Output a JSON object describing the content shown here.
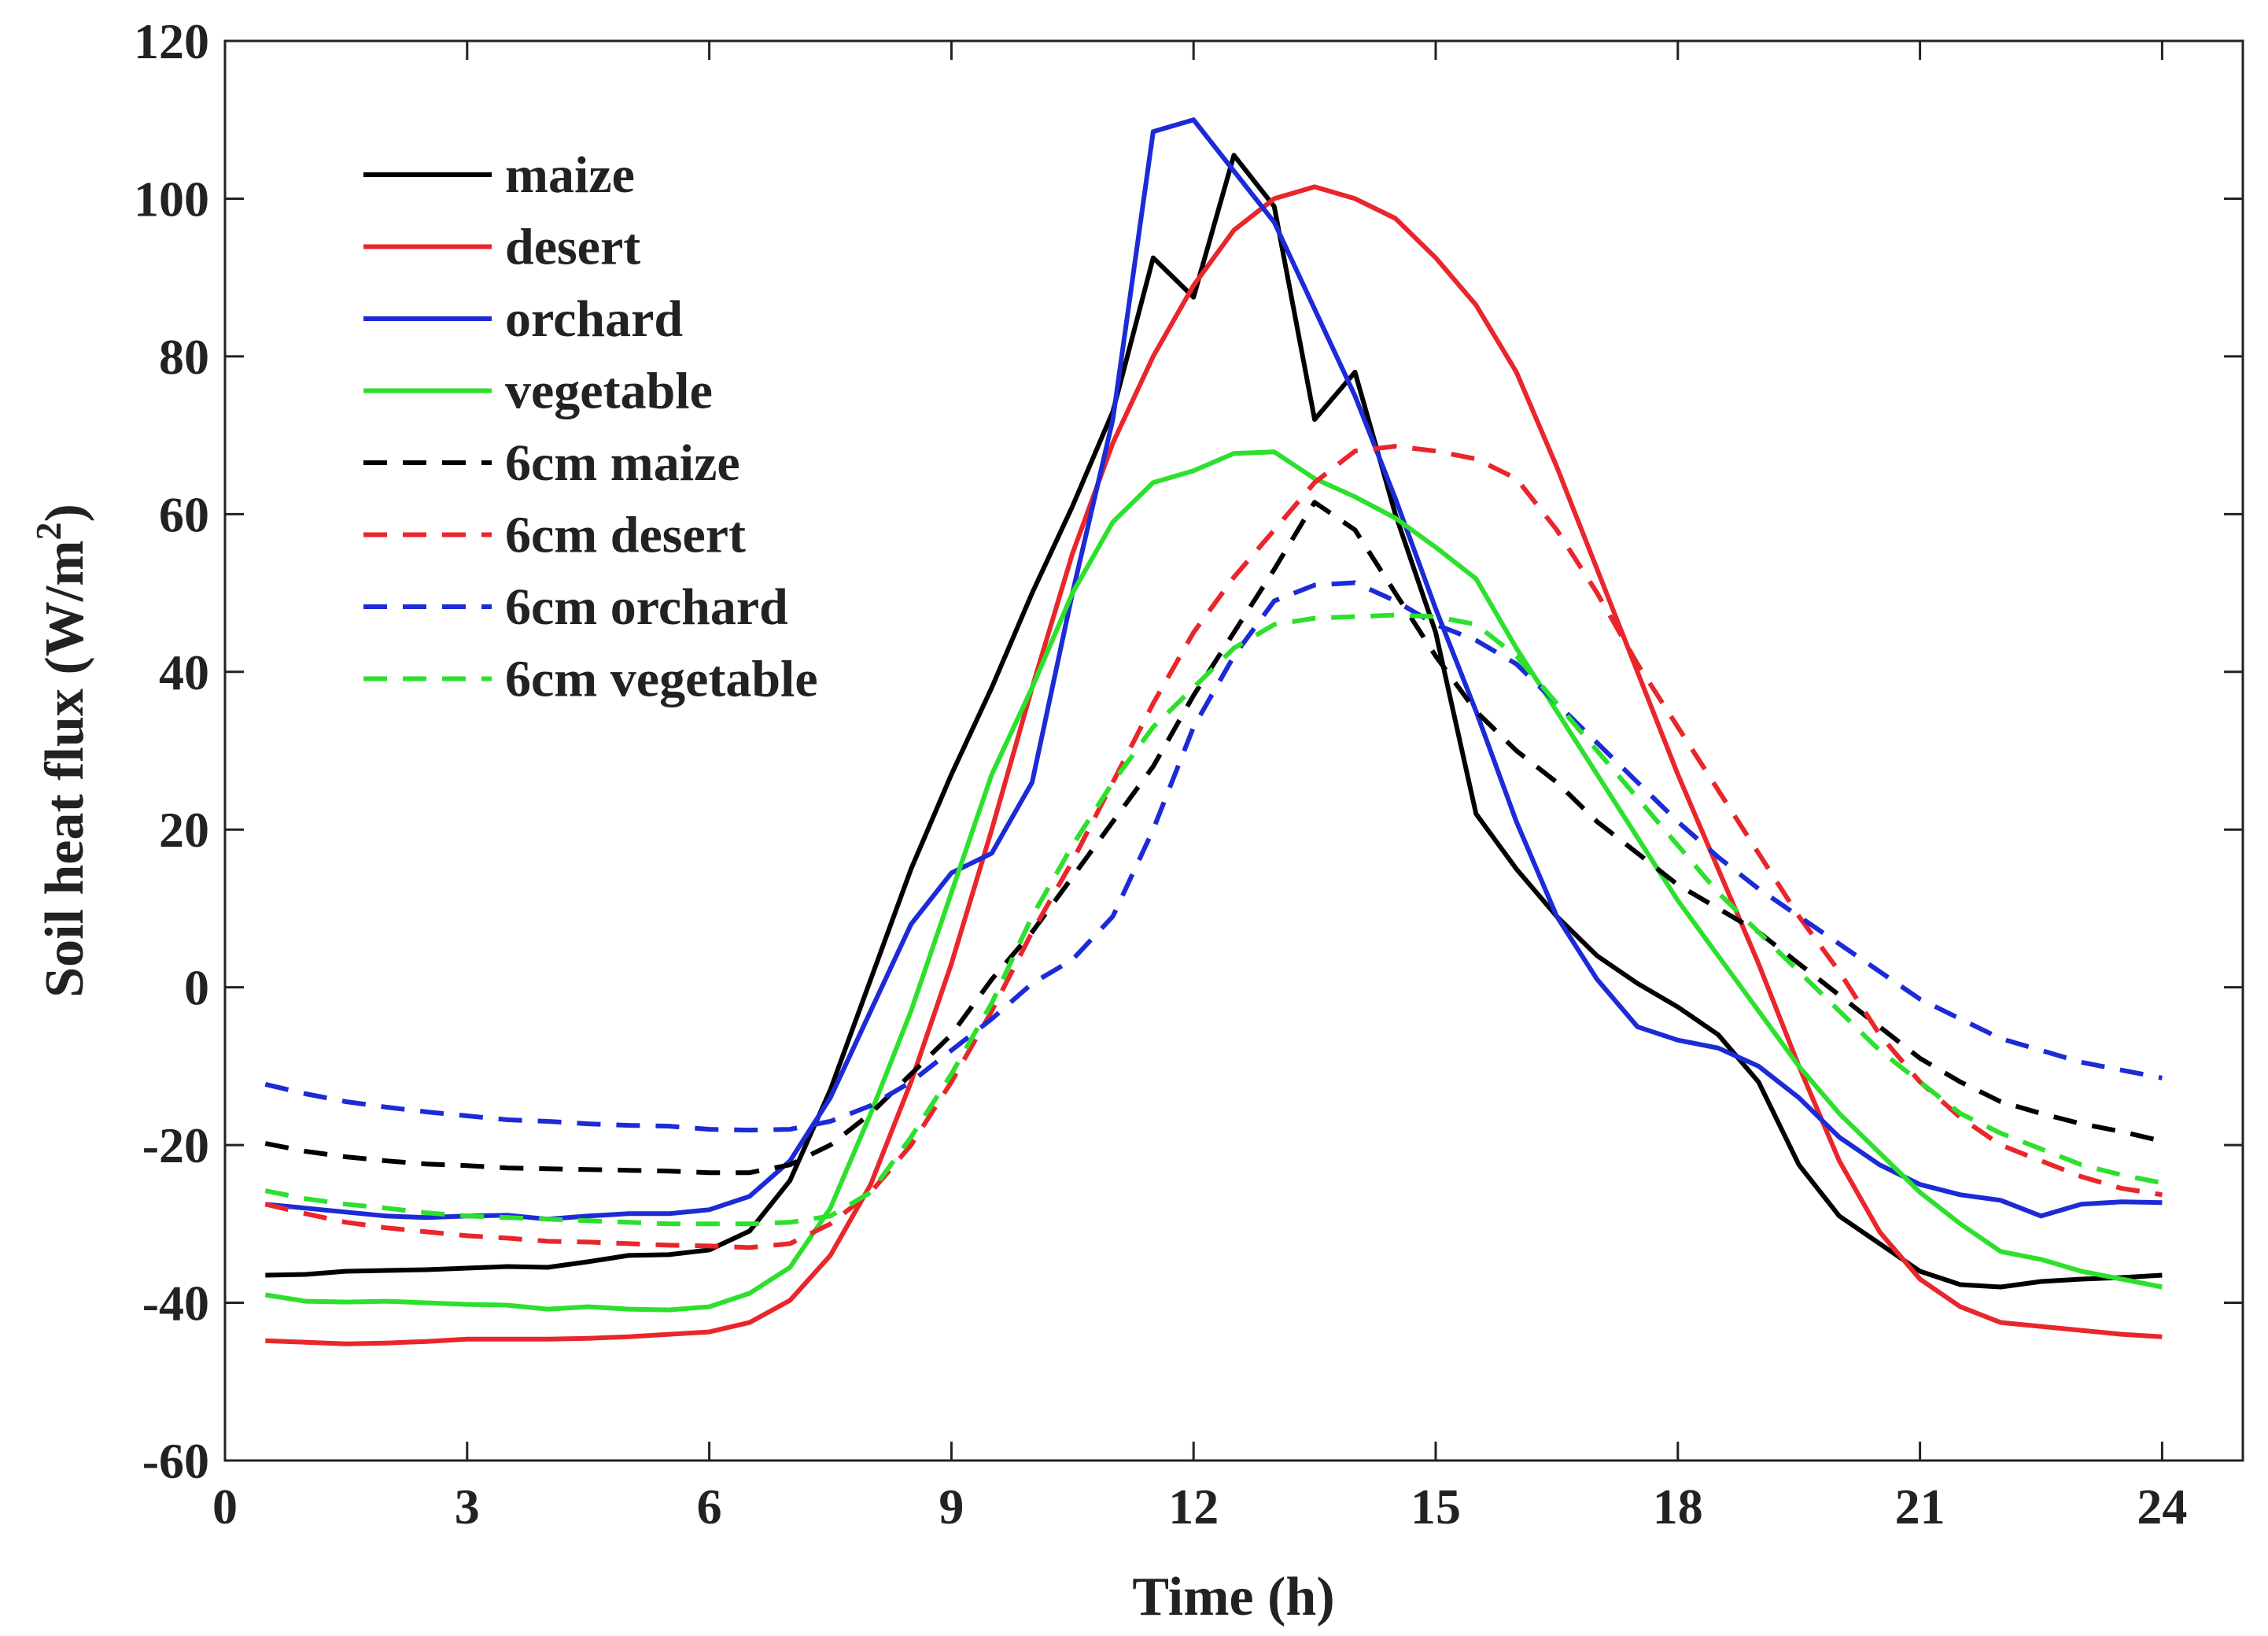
{
  "chart_data": {
    "type": "line",
    "title": "",
    "xlabel": "Time (h)",
    "ylabel": "Soil heat flux (W/m",
    "ylabel_superscript": "2",
    "ylabel_close": ")",
    "xlim": [
      0,
      25
    ],
    "ylim": [
      -60,
      120
    ],
    "xticks": [
      0,
      3,
      6,
      9,
      12,
      15,
      18,
      21,
      24
    ],
    "yticks": [
      -60,
      -40,
      -20,
      0,
      20,
      40,
      60,
      80,
      100,
      120
    ],
    "legend_position": "top-left",
    "grid": false,
    "x": [
      0.5,
      1,
      1.5,
      2,
      2.5,
      3,
      3.5,
      4,
      4.5,
      5,
      5.5,
      6,
      6.5,
      7,
      7.5,
      8,
      8.5,
      9,
      9.5,
      10,
      10.5,
      11,
      11.5,
      12,
      12.5,
      13,
      13.5,
      14,
      14.5,
      15,
      15.5,
      16,
      16.5,
      17,
      17.5,
      18,
      18.5,
      19,
      19.5,
      20,
      20.5,
      21,
      21.5,
      22,
      22.5,
      23,
      23.5,
      24
    ],
    "series": [
      {
        "name": "maize",
        "color": "#000000",
        "dash": "solid",
        "values": [
          -36.5,
          -36.4,
          -36,
          -35.9,
          -35.8,
          -35.6,
          -35.4,
          -35.5,
          -34.8,
          -34,
          -33.9,
          -33.3,
          -30.9,
          -24.5,
          -13,
          1,
          15,
          27,
          38,
          50,
          61,
          73,
          92.5,
          87.5,
          105.5,
          99,
          72,
          78,
          60,
          45,
          22,
          15,
          9,
          4,
          0.5,
          -2.5,
          -6,
          -12,
          -22.5,
          -29,
          -32.5,
          -36,
          -37.7,
          -38,
          -37.3,
          -37,
          -36.8,
          -36.5
        ]
      },
      {
        "name": "desert",
        "color": "#e8262b",
        "dash": "solid",
        "values": [
          -44.8,
          -45,
          -45.2,
          -45.1,
          -44.9,
          -44.6,
          -44.6,
          -44.6,
          -44.5,
          -44.3,
          -44,
          -43.7,
          -42.5,
          -39.7,
          -34,
          -25,
          -12,
          3,
          20,
          38,
          55,
          69,
          80,
          89,
          96,
          100,
          101.5,
          100,
          97.5,
          92.5,
          86.5,
          78,
          66,
          53,
          40,
          27,
          15,
          3,
          -10,
          -22,
          -31,
          -37,
          -40.5,
          -42.5,
          -43,
          -43.5,
          -44,
          -44.3
        ]
      },
      {
        "name": "orchard",
        "color": "#1c2bd6",
        "dash": "solid",
        "values": [
          -27.5,
          -28,
          -28.5,
          -29,
          -29.2,
          -29,
          -28.9,
          -29.4,
          -29,
          -28.7,
          -28.7,
          -28.2,
          -26.5,
          -22,
          -14,
          -3,
          8,
          14.5,
          17,
          26,
          50,
          72,
          108.5,
          110,
          103.5,
          97,
          86,
          75,
          62,
          48,
          35,
          21,
          9,
          1,
          -5,
          -6.7,
          -7.7,
          -10,
          -14,
          -19,
          -22.5,
          -25,
          -26.3,
          -27,
          -29,
          -27.5,
          -27.2,
          -27.3
        ]
      },
      {
        "name": "vegetable",
        "color": "#2de02d",
        "dash": "solid",
        "values": [
          -39,
          -39.8,
          -39.9,
          -39.8,
          -40,
          -40.2,
          -40.3,
          -40.8,
          -40.5,
          -40.8,
          -40.9,
          -40.5,
          -38.8,
          -35.5,
          -28,
          -16,
          -3,
          12,
          27,
          38,
          50,
          59,
          64,
          65.5,
          67.7,
          67.9,
          64.5,
          62.2,
          59.5,
          55.8,
          51.8,
          43,
          35,
          27,
          19,
          11,
          4,
          -3,
          -10,
          -16,
          -21,
          -26,
          -30,
          -33.5,
          -34.5,
          -36,
          -37,
          -38
        ]
      },
      {
        "name": "6cm maize",
        "color": "#000000",
        "dash": "dashed",
        "values": [
          -19.8,
          -20.8,
          -21.5,
          -22,
          -22.4,
          -22.6,
          -22.9,
          -23,
          -23.1,
          -23.2,
          -23.3,
          -23.5,
          -23.5,
          -22.5,
          -20,
          -16,
          -11,
          -6,
          1,
          7,
          14,
          21,
          28,
          37,
          45,
          53,
          61.5,
          58,
          50,
          42,
          35,
          30,
          26,
          21,
          17,
          13,
          10,
          7,
          3,
          -1,
          -5,
          -9,
          -12,
          -14.5,
          -16,
          -17.3,
          -18.3,
          -19.5
        ]
      },
      {
        "name": "6cm desert",
        "color": "#e8262b",
        "dash": "dashed",
        "values": [
          -27.5,
          -28.7,
          -29.8,
          -30.5,
          -31,
          -31.5,
          -31.8,
          -32.2,
          -32.3,
          -32.5,
          -32.7,
          -32.8,
          -33,
          -32.5,
          -30,
          -26,
          -20,
          -12,
          -3,
          7,
          16,
          26,
          36,
          45,
          52,
          58,
          64,
          68,
          68.6,
          68,
          67,
          64.5,
          58,
          50,
          41,
          33,
          25,
          17,
          9,
          2,
          -6,
          -12,
          -16.5,
          -20,
          -22,
          -24,
          -25.5,
          -26.3
        ]
      },
      {
        "name": "6cm orchard",
        "color": "#1c2bd6",
        "dash": "dashed",
        "values": [
          -12.3,
          -13.5,
          -14.5,
          -15.2,
          -15.8,
          -16.3,
          -16.8,
          -17,
          -17.3,
          -17.5,
          -17.6,
          -18,
          -18.1,
          -18,
          -17,
          -15,
          -12,
          -8,
          -4,
          0.5,
          3.5,
          9,
          20,
          33,
          42,
          49,
          51,
          51.3,
          49,
          46,
          44,
          41,
          36,
          31,
          26,
          21,
          16.5,
          12.5,
          9,
          5.5,
          2,
          -1.5,
          -4,
          -6.5,
          -8,
          -9.5,
          -10.5,
          -11.5
        ]
      },
      {
        "name": "6cm vegetable",
        "color": "#2de02d",
        "dash": "dashed",
        "values": [
          -25.8,
          -26.8,
          -27.5,
          -28,
          -28.6,
          -29,
          -29.2,
          -29.4,
          -29.6,
          -29.8,
          -30,
          -30,
          -30,
          -29.8,
          -29,
          -26,
          -19,
          -11,
          -2,
          9,
          18,
          26,
          33,
          38,
          43,
          46,
          46.8,
          47,
          47.2,
          47,
          46,
          42,
          36,
          30,
          24,
          18,
          12,
          7,
          2,
          -3,
          -8,
          -12,
          -16,
          -18.5,
          -20.5,
          -22.5,
          -23.8,
          -24.8
        ]
      }
    ]
  }
}
